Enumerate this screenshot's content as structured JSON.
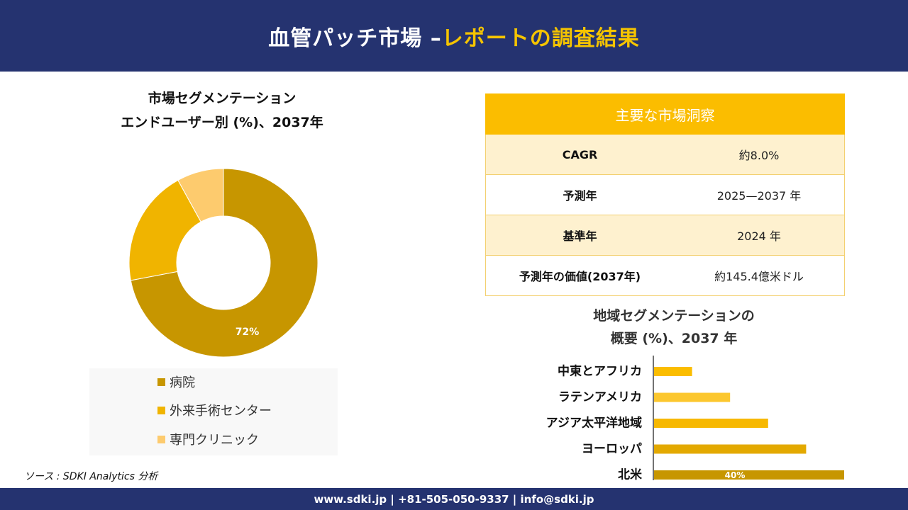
{
  "header": {
    "title_main": "血管パッチ市場 –",
    "title_accent": "レポートの調査結果"
  },
  "donut": {
    "title_line1": "市場セグメンテーション",
    "title_line2": "エンドユーザー別 (%)、2037年"
  },
  "insights": {
    "heading": "主要な市場洞察",
    "rows": [
      {
        "label": "CAGR",
        "value": "約8.0%"
      },
      {
        "label": "予測年",
        "value": "2025—2037 年"
      },
      {
        "label": "基準年",
        "value": "2024 年"
      },
      {
        "label": "予測年の価値(2037年)",
        "value": "約145.4億米ドル"
      }
    ]
  },
  "bar": {
    "title_line1": "地域セグメンテーションの",
    "title_line2": "概要 (%)、2037 年"
  },
  "source": "ソース : SDKI Analytics 分析",
  "footer": "www.sdki.jp | +81-505-050-9337 | info@sdki.jp",
  "chart_data": [
    {
      "type": "pie",
      "title": "市場セグメンテーション エンドユーザー別 (%)、2037年",
      "categories": [
        "病院",
        "外来手術センター",
        "専門クリニック"
      ],
      "values": [
        72,
        20,
        8
      ],
      "data_labels": [
        "72%",
        "",
        ""
      ],
      "colors": [
        "#c79600",
        "#f0b400",
        "#fdcb6e"
      ],
      "donut": true,
      "legend": "bottom"
    },
    {
      "type": "bar",
      "orientation": "horizontal",
      "title": "地域セグメンテーションの 概要 (%)、2037 年",
      "categories": [
        "中東とアフリカ",
        "ラテンアメリカ",
        "アジア太平洋地域",
        "ヨーロッパ",
        "北米"
      ],
      "values": [
        8,
        16,
        24,
        32,
        40
      ],
      "data_labels": [
        "",
        "",
        "",
        "",
        "40%"
      ],
      "colors": [
        "#fbbd00",
        "#fcc72e",
        "#f7b800",
        "#e3a900",
        "#c79600"
      ],
      "xlim": [
        0,
        40
      ],
      "grid": false
    }
  ]
}
